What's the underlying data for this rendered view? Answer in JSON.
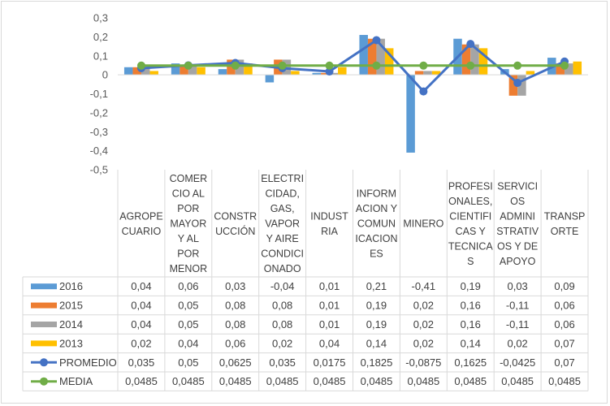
{
  "chart_data": {
    "type": "bar",
    "categories": [
      [
        "AGROPE",
        "CUARIO"
      ],
      [
        "COMER",
        "CIO AL",
        "POR",
        "MAYOR",
        "Y AL",
        "POR",
        "MENOR"
      ],
      [
        "CONSTR",
        "UCCIÓN"
      ],
      [
        "ELECTRI",
        "CIDAD,",
        "GAS,",
        "VAPOR",
        "Y AIRE",
        "CONDICI",
        "ONADO"
      ],
      [
        "INDUST",
        "RIA"
      ],
      [
        "INFORM",
        "ACION Y",
        "COMUN",
        "ICACION",
        "ES"
      ],
      [
        "MINERO"
      ],
      [
        "PROFESI",
        "ONALES,",
        "CIENTIFI",
        "CAS Y",
        "TECNICA",
        "S"
      ],
      [
        "SERVICI",
        "OS",
        "ADMINI",
        "STRATIV",
        "OS Y DE",
        "APOYO"
      ],
      [
        "TRANSP",
        "ORTE"
      ]
    ],
    "ylim": [
      -0.5,
      0.3
    ],
    "yticks": [
      "0,3",
      "0,2",
      "0,1",
      "0",
      "-0,1",
      "-0,2",
      "-0,3",
      "-0,4",
      "-0,5"
    ],
    "bar_series": [
      {
        "name": "2016",
        "color": "#5b9bd5",
        "values": [
          0.04,
          0.06,
          0.03,
          -0.04,
          0.01,
          0.21,
          -0.41,
          0.19,
          0.03,
          0.09
        ],
        "labels": [
          "0,04",
          "0,06",
          "0,03",
          "-0,04",
          "0,01",
          "0,21",
          "-0,41",
          "0,19",
          "0,03",
          "0,09"
        ]
      },
      {
        "name": "2015",
        "color": "#ed7d31",
        "values": [
          0.04,
          0.05,
          0.08,
          0.08,
          0.01,
          0.19,
          0.02,
          0.16,
          -0.11,
          0.06
        ],
        "labels": [
          "0,04",
          "0,05",
          "0,08",
          "0,08",
          "0,01",
          "0,19",
          "0,02",
          "0,16",
          "-0,11",
          "0,06"
        ]
      },
      {
        "name": "2014",
        "color": "#a5a5a5",
        "values": [
          0.04,
          0.05,
          0.08,
          0.08,
          0.01,
          0.19,
          0.02,
          0.16,
          -0.11,
          0.06
        ],
        "labels": [
          "0,04",
          "0,05",
          "0,08",
          "0,08",
          "0,01",
          "0,19",
          "0,02",
          "0,16",
          "-0,11",
          "0,06"
        ]
      },
      {
        "name": "2013",
        "color": "#ffc000",
        "values": [
          0.02,
          0.04,
          0.06,
          0.02,
          0.04,
          0.14,
          0.02,
          0.14,
          0.02,
          0.07
        ],
        "labels": [
          "0,02",
          "0,04",
          "0,06",
          "0,02",
          "0,04",
          "0,14",
          "0,02",
          "0,14",
          "0,02",
          "0,07"
        ]
      }
    ],
    "line_series": [
      {
        "name": "PROMEDIO",
        "color": "#4472c4",
        "values": [
          0.035,
          0.05,
          0.0625,
          0.035,
          0.0175,
          0.1825,
          -0.0875,
          0.1625,
          -0.0425,
          0.07
        ],
        "labels": [
          "0,035",
          "0,05",
          "0,0625",
          "0,035",
          "0,0175",
          "0,1825",
          "-0,0875",
          "0,1625",
          "-0,0425",
          "0,07"
        ]
      },
      {
        "name": "MEDIA",
        "color": "#70ad47",
        "values": [
          0.0485,
          0.0485,
          0.0485,
          0.0485,
          0.0485,
          0.0485,
          0.0485,
          0.0485,
          0.0485,
          0.0485
        ],
        "labels": [
          "0,0485",
          "0,0485",
          "0,0485",
          "0,0485",
          "0,0485",
          "0,0485",
          "0,0485",
          "0,0485",
          "0,0485",
          "0,0485"
        ]
      }
    ],
    "grid": false,
    "legend": "data-table"
  }
}
